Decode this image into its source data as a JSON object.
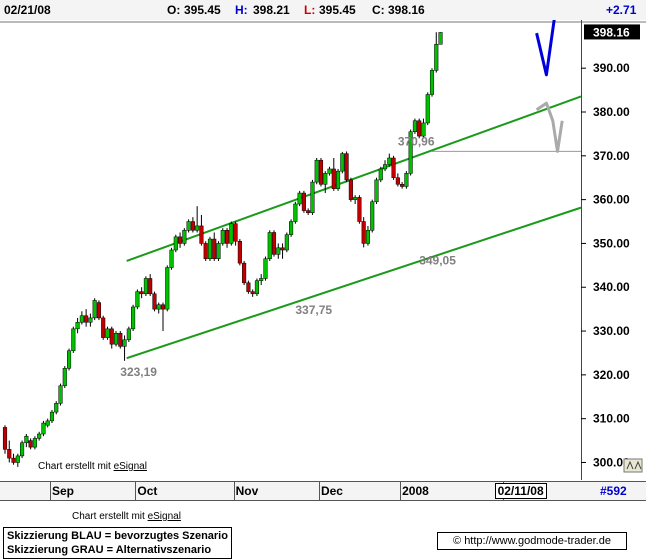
{
  "header": {
    "date": "02/21/08",
    "open_label": "O:",
    "open": "395.45",
    "high_label": "H:",
    "high": "398.21",
    "low_label": "L:",
    "low": "395.45",
    "close_label": "C:",
    "close": "398.16",
    "change": "+2.71"
  },
  "footer": {
    "credit_prefix": "Chart erstellt mit",
    "credit_brand": "eSignal",
    "symbol_count": "#592",
    "legend_lines": [
      "Skizzierung BLAU = bevorzugtes Szenario",
      "Skizzierung GRAU = Alternativszenario"
    ],
    "url": "© http://www.godmode-trader.de"
  },
  "colors": {
    "up_candle": "#00c000",
    "down_candle": "#c00000",
    "trendline": "#1a9a1a",
    "scenario_blue": "#0000dd",
    "scenario_gray": "#aaaaaa",
    "annotation_text": "#808080",
    "resistance_line": "#999999"
  },
  "chart_data": {
    "type": "candlestick",
    "y_ticks": [
      "300.00",
      "310.00",
      "320.00",
      "330.00",
      "340.00",
      "350.00",
      "360.00",
      "370.00",
      "380.00",
      "390.00"
    ],
    "ylim": [
      296,
      401
    ],
    "last_price_label": "398.16",
    "x_labels": [
      {
        "label": "Sep",
        "i": 11
      },
      {
        "label": "Oct",
        "i": 31
      },
      {
        "label": "Nov",
        "i": 54
      },
      {
        "label": "Dec",
        "i": 74
      },
      {
        "label": "2008",
        "i": 93
      },
      {
        "label": "02/11/08",
        "i": 117
      }
    ],
    "candles": [
      [
        308.0,
        308.5,
        302.0,
        303.0
      ],
      [
        303.0,
        305.0,
        300.0,
        301.0
      ],
      [
        301.0,
        302.0,
        299.5,
        300.0
      ],
      [
        300.0,
        302.0,
        299.0,
        301.5
      ],
      [
        301.5,
        305.0,
        301.0,
        304.5
      ],
      [
        304.5,
        306.5,
        303.5,
        306.0
      ],
      [
        305.0,
        305.5,
        303.0,
        303.5
      ],
      [
        303.5,
        306.0,
        303.0,
        305.5
      ],
      [
        305.5,
        307.0,
        305.0,
        306.5
      ],
      [
        306.5,
        309.5,
        306.0,
        309.0
      ],
      [
        308.5,
        310.0,
        308.0,
        309.5
      ],
      [
        309.5,
        312.0,
        309.0,
        311.5
      ],
      [
        311.5,
        314.0,
        311.0,
        313.5
      ],
      [
        313.5,
        318.0,
        313.0,
        317.5
      ],
      [
        317.5,
        322.0,
        317.0,
        321.5
      ],
      [
        321.5,
        326.0,
        321.0,
        325.5
      ],
      [
        325.5,
        331.0,
        325.0,
        330.5
      ],
      [
        330.5,
        333.0,
        329.5,
        332.0
      ],
      [
        332.0,
        334.5,
        331.5,
        333.5
      ],
      [
        333.5,
        335.0,
        331.0,
        332.0
      ],
      [
        332.0,
        334.0,
        331.0,
        333.0
      ],
      [
        333.0,
        337.5,
        332.5,
        337.0
      ],
      [
        336.5,
        337.0,
        332.5,
        333.0
      ],
      [
        333.0,
        333.5,
        328.0,
        328.5
      ],
      [
        328.5,
        331.0,
        328.0,
        330.5
      ],
      [
        330.5,
        331.0,
        326.0,
        327.0
      ],
      [
        327.0,
        330.0,
        326.5,
        329.5
      ],
      [
        329.5,
        330.0,
        326.0,
        326.5
      ],
      [
        326.5,
        329.0,
        323.2,
        328.0
      ],
      [
        328.0,
        331.0,
        327.5,
        330.5
      ],
      [
        330.5,
        336.0,
        330.0,
        335.5
      ],
      [
        335.5,
        339.5,
        335.0,
        339.0
      ],
      [
        339.0,
        340.0,
        337.5,
        338.5
      ],
      [
        338.5,
        342.5,
        338.0,
        342.0
      ],
      [
        342.0,
        343.0,
        338.0,
        338.5
      ],
      [
        338.5,
        339.0,
        334.5,
        335.0
      ],
      [
        335.0,
        336.5,
        334.0,
        336.0
      ],
      [
        336.0,
        336.5,
        330.0,
        335.0
      ],
      [
        335.0,
        345.0,
        334.5,
        344.5
      ],
      [
        344.5,
        349.0,
        344.0,
        348.5
      ],
      [
        348.5,
        352.0,
        348.0,
        351.5
      ],
      [
        351.5,
        352.5,
        349.0,
        350.0
      ],
      [
        350.0,
        353.5,
        349.5,
        353.0
      ],
      [
        353.0,
        355.5,
        352.5,
        355.0
      ],
      [
        355.0,
        356.0,
        352.5,
        353.0
      ],
      [
        353.0,
        358.5,
        352.5,
        354.0
      ],
      [
        354.0,
        356.5,
        349.5,
        350.0
      ],
      [
        350.0,
        350.5,
        346.0,
        346.5
      ],
      [
        346.5,
        351.5,
        346.0,
        351.0
      ],
      [
        351.0,
        352.5,
        346.0,
        346.5
      ],
      [
        346.5,
        350.5,
        346.0,
        350.0
      ],
      [
        350.0,
        353.5,
        349.5,
        353.0
      ],
      [
        353.0,
        353.5,
        349.0,
        350.0
      ],
      [
        350.0,
        355.0,
        349.5,
        354.5
      ],
      [
        354.5,
        355.0,
        349.5,
        350.5
      ],
      [
        350.5,
        351.0,
        345.0,
        345.5
      ],
      [
        345.5,
        346.0,
        340.5,
        341.0
      ],
      [
        341.0,
        341.5,
        338.5,
        339.0
      ],
      [
        339.0,
        339.5,
        337.8,
        338.5
      ],
      [
        338.5,
        342.0,
        338.0,
        341.5
      ],
      [
        341.5,
        343.0,
        340.5,
        342.0
      ],
      [
        342.0,
        347.0,
        341.5,
        346.5
      ],
      [
        346.5,
        353.0,
        346.0,
        352.5
      ],
      [
        352.5,
        353.0,
        347.0,
        347.5
      ],
      [
        347.5,
        350.0,
        346.5,
        349.0
      ],
      [
        349.0,
        350.0,
        346.5,
        348.5
      ],
      [
        348.5,
        352.5,
        348.0,
        352.0
      ],
      [
        352.0,
        355.5,
        351.5,
        355.0
      ],
      [
        355.0,
        359.5,
        354.5,
        359.0
      ],
      [
        359.0,
        362.0,
        358.5,
        361.5
      ],
      [
        361.5,
        362.0,
        357.0,
        357.5
      ],
      [
        357.5,
        358.0,
        356.5,
        357.0
      ],
      [
        357.0,
        364.5,
        356.5,
        364.0
      ],
      [
        364.0,
        369.5,
        363.5,
        369.0
      ],
      [
        369.0,
        369.5,
        363.0,
        363.5
      ],
      [
        363.5,
        366.5,
        361.5,
        366.0
      ],
      [
        366.0,
        367.5,
        365.5,
        367.0
      ],
      [
        367.0,
        369.5,
        362.0,
        362.5
      ],
      [
        362.5,
        367.0,
        362.0,
        366.5
      ],
      [
        366.5,
        370.9,
        366.0,
        370.5
      ],
      [
        370.5,
        371.0,
        364.0,
        364.5
      ],
      [
        364.5,
        365.0,
        359.5,
        360.0
      ],
      [
        360.0,
        361.0,
        359.0,
        360.5
      ],
      [
        360.5,
        361.0,
        354.5,
        355.0
      ],
      [
        355.0,
        356.0,
        349.1,
        350.0
      ],
      [
        350.0,
        354.0,
        349.5,
        353.0
      ],
      [
        353.0,
        360.0,
        352.5,
        359.5
      ],
      [
        359.5,
        365.0,
        359.0,
        364.5
      ],
      [
        364.5,
        367.5,
        364.0,
        367.0
      ],
      [
        367.0,
        369.0,
        366.5,
        368.0
      ],
      [
        368.0,
        370.5,
        367.5,
        369.5
      ],
      [
        369.5,
        370.0,
        364.5,
        365.0
      ],
      [
        365.0,
        366.0,
        363.0,
        363.5
      ],
      [
        363.5,
        364.0,
        362.5,
        363.0
      ],
      [
        363.0,
        366.5,
        362.5,
        366.0
      ],
      [
        366.0,
        376.0,
        365.5,
        375.5
      ],
      [
        375.5,
        378.5,
        375.0,
        378.0
      ],
      [
        378.0,
        378.5,
        374.0,
        374.5
      ],
      [
        374.5,
        378.5,
        374.0,
        377.5
      ],
      [
        377.5,
        384.5,
        377.0,
        384.0
      ],
      [
        384.0,
        390.0,
        383.5,
        389.5
      ],
      [
        389.5,
        398.21,
        389.0,
        395.45
      ],
      [
        395.45,
        398.21,
        395.45,
        398.16
      ]
    ],
    "trendlines": [
      {
        "i1": 28.5,
        "p1": 323.8,
        "i2": 139,
        "p2": 359.5
      },
      {
        "i1": 28.5,
        "p1": 346.0,
        "i2": 139,
        "p2": 385.0
      }
    ],
    "resistance": {
      "price": 371.0,
      "i_start": 100,
      "i_end": 139
    },
    "annotations": [
      {
        "text": "323,19",
        "i": 27,
        "price": 319.7
      },
      {
        "text": "337,75",
        "i": 68,
        "price": 333.9
      },
      {
        "text": "349,05",
        "i": 97,
        "price": 345.2
      },
      {
        "text": "370,96",
        "i": 92,
        "price": 372.4
      }
    ],
    "scenario_blue": [
      [
        124.5,
        398.0
      ],
      [
        126.8,
        388.5
      ],
      [
        128.9,
        403.0
      ]
    ],
    "scenario_gray": [
      [
        124.5,
        380.5
      ],
      [
        126.8,
        382.0
      ],
      [
        128.3,
        378.0
      ],
      [
        129.4,
        371.0
      ],
      [
        130.5,
        378.0
      ]
    ]
  }
}
